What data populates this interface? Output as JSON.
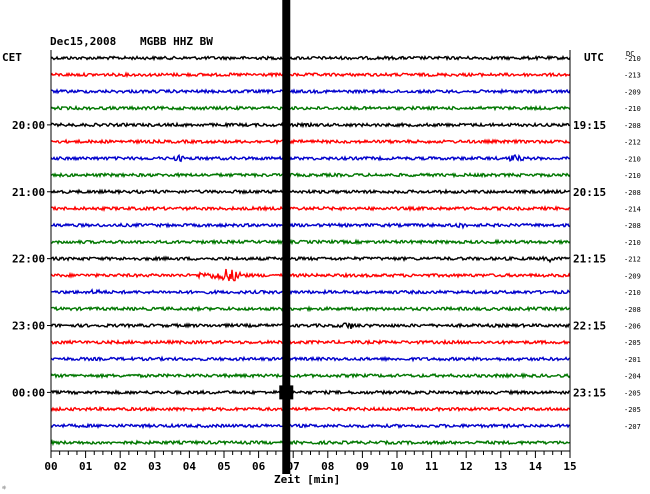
{
  "header": {
    "date": "Dec15,2008",
    "station": "MGBB HHZ BW",
    "left_zone": "CET",
    "right_zone": "UTC",
    "dc_label": "DC"
  },
  "footer": {
    "xlabel": "Zeit [min]",
    "corner_mark": "☼"
  },
  "colors": {
    "trace_cycle": [
      "#000000",
      "#ff0000",
      "#0000cc",
      "#007700"
    ],
    "frame": "#000000",
    "gridline": "#000000"
  },
  "chart_data": {
    "type": "line",
    "title": "Dec15,2008   MGBB HHZ BW",
    "xlabel": "Zeit [min]",
    "xlim": [
      0,
      15
    ],
    "x_ticks": [
      "00",
      "01",
      "02",
      "03",
      "04",
      "05",
      "06",
      "07",
      "08",
      "09",
      "10",
      "11",
      "12",
      "13",
      "14",
      "15"
    ],
    "left_time_labels": [
      {
        "row": 4,
        "label": "20:00"
      },
      {
        "row": 8,
        "label": "21:00"
      },
      {
        "row": 12,
        "label": "22:00"
      },
      {
        "row": 16,
        "label": "23:00"
      },
      {
        "row": 20,
        "label": "00:00"
      }
    ],
    "right_time_labels": [
      {
        "row": 4,
        "label": "19:15"
      },
      {
        "row": 8,
        "label": "20:15"
      },
      {
        "row": 12,
        "label": "21:15"
      },
      {
        "row": 16,
        "label": "22:15"
      },
      {
        "row": 20,
        "label": "23:15"
      }
    ],
    "rows": 24,
    "dc_offsets": [
      "-210",
      "-213",
      "-209",
      "-210",
      "-208",
      "-212",
      "-210",
      "-210",
      "-208",
      "-214",
      "-208",
      "-210",
      "-212",
      "-209",
      "-210",
      "-208",
      "-206",
      "-205",
      "-201",
      "-204",
      "-205",
      "-205",
      "-207"
    ],
    "noise_amplitude": 1.5,
    "events": [
      {
        "row": 13,
        "minute": 5.1,
        "amplitude": 6,
        "duration_min": 0.6
      },
      {
        "row": 13,
        "minute": 4.4,
        "amplitude": 3,
        "duration_min": 0.2
      },
      {
        "row": 6,
        "minute": 13.4,
        "amplitude": 2.5,
        "duration_min": 0.3
      },
      {
        "row": 6,
        "minute": 3.7,
        "amplitude": 2,
        "duration_min": 0.2
      },
      {
        "row": 16,
        "minute": 8.6,
        "amplitude": 2.5,
        "duration_min": 0.3
      },
      {
        "row": 14,
        "minute": 1.3,
        "amplitude": 2,
        "duration_min": 0.2
      },
      {
        "row": 12,
        "minute": 14.4,
        "amplitude": 2,
        "duration_min": 0.2
      },
      {
        "row": 10,
        "minute": 11.8,
        "amplitude": 2,
        "duration_min": 0.2
      }
    ],
    "glitch_minute": 6.8,
    "glitch_rows_wide": [
      20
    ],
    "grid": true
  }
}
